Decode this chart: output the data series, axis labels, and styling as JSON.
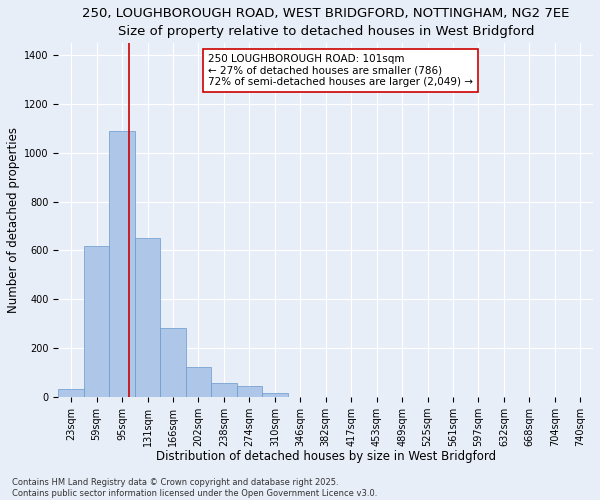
{
  "title_line1": "250, LOUGHBOROUGH ROAD, WEST BRIDGFORD, NOTTINGHAM, NG2 7EE",
  "title_line2": "Size of property relative to detached houses in West Bridgford",
  "xlabel": "Distribution of detached houses by size in West Bridgford",
  "ylabel": "Number of detached properties",
  "bar_labels": [
    "23sqm",
    "59sqm",
    "95sqm",
    "131sqm",
    "166sqm",
    "202sqm",
    "238sqm",
    "274sqm",
    "310sqm",
    "346sqm",
    "382sqm",
    "417sqm",
    "453sqm",
    "489sqm",
    "525sqm",
    "561sqm",
    "597sqm",
    "632sqm",
    "668sqm",
    "704sqm",
    "740sqm"
  ],
  "bar_values": [
    30,
    620,
    1090,
    650,
    280,
    120,
    55,
    45,
    15,
    0,
    0,
    0,
    0,
    0,
    0,
    0,
    0,
    0,
    0,
    0,
    0
  ],
  "bar_color": "#aec6e8",
  "bar_edge_color": "#6699cc",
  "vline_x": 2.27,
  "vline_color": "#cc0000",
  "annotation_text": "250 LOUGHBOROUGH ROAD: 101sqm\n← 27% of detached houses are smaller (786)\n72% of semi-detached houses are larger (2,049) →",
  "annotation_box_color": "#ffffff",
  "annotation_box_edge": "#cc0000",
  "ylim": [
    0,
    1450
  ],
  "yticks": [
    0,
    200,
    400,
    600,
    800,
    1000,
    1200,
    1400
  ],
  "xlim_left": -0.5,
  "xlim_right": 20.5,
  "bg_color": "#e8eef8",
  "plot_bg_color": "#e8eef8",
  "grid_color": "#ffffff",
  "footer_line1": "Contains HM Land Registry data © Crown copyright and database right 2025.",
  "footer_line2": "Contains public sector information licensed under the Open Government Licence v3.0.",
  "title_fontsize": 9.5,
  "tick_fontsize": 7,
  "label_fontsize": 8.5,
  "annotation_fontsize": 7.5,
  "footer_fontsize": 6.0
}
